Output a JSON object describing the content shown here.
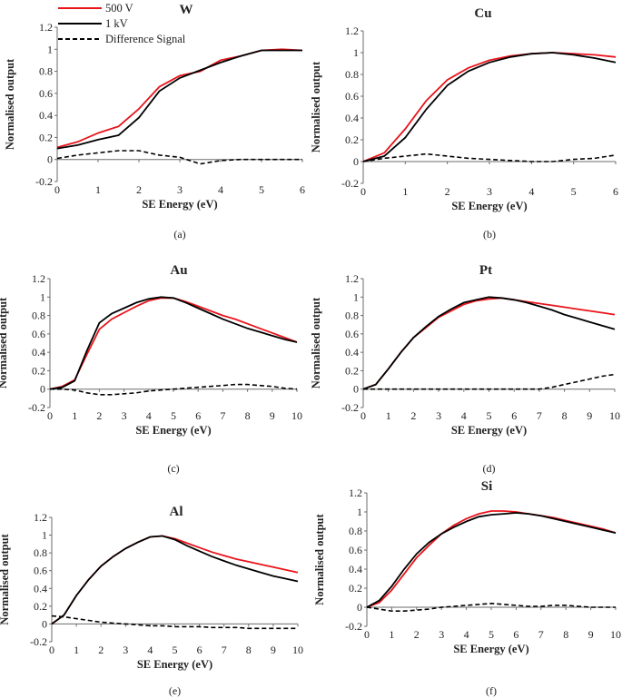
{
  "legend": {
    "entries": [
      {
        "label": "500 V",
        "color": "#e8141b",
        "style": "solid"
      },
      {
        "label": "1 kV",
        "color": "#000000",
        "style": "solid"
      },
      {
        "label": "Difference Signal",
        "color": "#000000",
        "style": "dashed"
      }
    ]
  },
  "chart_data": [
    {
      "type": "line",
      "title": "W",
      "caption": "(a)",
      "xlabel": "SE Energy (eV)",
      "ylabel": "Normalised output",
      "xlim": [
        0,
        6
      ],
      "ylim": [
        -0.2,
        1.2
      ],
      "xticks": [
        0,
        1,
        2,
        3,
        4,
        5,
        6
      ],
      "yticks": [
        -0.2,
        0,
        0.2,
        0.4,
        0.6,
        0.8,
        1,
        1.2
      ],
      "yticklabels": [
        "-0.2",
        "0",
        "0.2",
        "0.4",
        "0.6",
        "0.8",
        "1",
        "1.2"
      ],
      "series": [
        {
          "name": "500 V",
          "x": [
            0,
            0.5,
            1,
            1.5,
            2,
            2.5,
            3,
            3.5,
            4,
            4.5,
            5,
            5.5,
            6
          ],
          "y": [
            0.11,
            0.16,
            0.24,
            0.3,
            0.46,
            0.66,
            0.76,
            0.8,
            0.9,
            0.94,
            0.99,
            1.0,
            0.99
          ]
        },
        {
          "name": "1 kV",
          "x": [
            0,
            0.5,
            1,
            1.5,
            2,
            2.5,
            3,
            3.5,
            4,
            4.5,
            5,
            5.5,
            6
          ],
          "y": [
            0.1,
            0.13,
            0.18,
            0.22,
            0.38,
            0.62,
            0.74,
            0.81,
            0.88,
            0.94,
            0.99,
            0.99,
            0.99
          ]
        },
        {
          "name": "Difference Signal",
          "x": [
            0,
            0.5,
            1,
            1.5,
            2,
            2.5,
            3,
            3.5,
            4,
            4.5,
            5,
            5.5,
            6
          ],
          "y": [
            0.01,
            0.04,
            0.06,
            0.08,
            0.08,
            0.04,
            0.02,
            -0.04,
            -0.01,
            0,
            0,
            0,
            0
          ]
        }
      ]
    },
    {
      "type": "line",
      "title": "Cu",
      "caption": "(b)",
      "xlabel": "SE Energy (eV)",
      "ylabel": "Normalised output",
      "xlim": [
        0,
        6
      ],
      "ylim": [
        -0.2,
        1.2
      ],
      "xticks": [
        0,
        1,
        2,
        3,
        4,
        5,
        6
      ],
      "yticks": [
        -0.2,
        0,
        0.2,
        0.4,
        0.6,
        0.8,
        1,
        1.2
      ],
      "yticklabels": [
        "-0.2",
        "0",
        "0.2",
        "0.4",
        "0.6",
        "0.8",
        "1",
        "1.2"
      ],
      "series": [
        {
          "name": "500 V",
          "x": [
            0,
            0.5,
            1,
            1.5,
            2,
            2.5,
            3,
            3.5,
            4,
            4.5,
            5,
            5.5,
            6
          ],
          "y": [
            0,
            0.08,
            0.3,
            0.56,
            0.75,
            0.86,
            0.93,
            0.97,
            0.99,
            1.0,
            0.99,
            0.98,
            0.96
          ]
        },
        {
          "name": "1 kV",
          "x": [
            0,
            0.5,
            1,
            1.5,
            2,
            2.5,
            3,
            3.5,
            4,
            4.5,
            5,
            5.5,
            6
          ],
          "y": [
            0,
            0.05,
            0.22,
            0.48,
            0.7,
            0.83,
            0.91,
            0.96,
            0.99,
            1.0,
            0.98,
            0.95,
            0.91
          ]
        },
        {
          "name": "Difference Signal",
          "x": [
            0,
            0.5,
            1,
            1.5,
            2,
            2.5,
            3,
            3.5,
            4,
            4.5,
            5,
            5.5,
            6
          ],
          "y": [
            0,
            0.03,
            0.05,
            0.07,
            0.05,
            0.03,
            0.02,
            0.01,
            0,
            0,
            0.02,
            0.03,
            0.06
          ]
        }
      ]
    },
    {
      "type": "line",
      "title": "Au",
      "caption": "(c)",
      "xlabel": "SE Energy (eV)",
      "ylabel": "Normalised output",
      "xlim": [
        0,
        10
      ],
      "ylim": [
        -0.2,
        1.2
      ],
      "xticks": [
        0,
        1,
        2,
        3,
        4,
        5,
        6,
        7,
        8,
        9,
        10
      ],
      "yticks": [
        -0.2,
        0,
        0.2,
        0.4,
        0.6,
        0.8,
        1,
        1.2
      ],
      "yticklabels": [
        "-0.2",
        "0",
        "0.2",
        "0.4",
        "0.6",
        "0.8",
        "1",
        "1.2"
      ],
      "series": [
        {
          "name": "500 V",
          "x": [
            0,
            0.5,
            1,
            1.5,
            2,
            2.5,
            3,
            3.5,
            4,
            4.5,
            5,
            5.5,
            6,
            6.5,
            7,
            7.5,
            8,
            8.5,
            9,
            9.5,
            10
          ],
          "y": [
            0,
            0.03,
            0.1,
            0.38,
            0.65,
            0.76,
            0.83,
            0.9,
            0.96,
            0.99,
            0.99,
            0.95,
            0.9,
            0.85,
            0.8,
            0.76,
            0.71,
            0.66,
            0.61,
            0.56,
            0.51
          ]
        },
        {
          "name": "1 kV",
          "x": [
            0,
            0.5,
            1,
            1.5,
            2,
            2.5,
            3,
            3.5,
            4,
            4.5,
            5,
            5.5,
            6,
            6.5,
            7,
            7.5,
            8,
            8.5,
            9,
            9.5,
            10
          ],
          "y": [
            0,
            0.02,
            0.09,
            0.42,
            0.72,
            0.82,
            0.88,
            0.94,
            0.98,
            1.0,
            0.99,
            0.94,
            0.88,
            0.82,
            0.76,
            0.71,
            0.66,
            0.62,
            0.58,
            0.54,
            0.51
          ]
        },
        {
          "name": "Difference Signal",
          "x": [
            0,
            0.5,
            1,
            1.5,
            2,
            2.5,
            3,
            3.5,
            4,
            4.5,
            5,
            5.5,
            6,
            6.5,
            7,
            7.5,
            8,
            8.5,
            9,
            9.5,
            10
          ],
          "y": [
            0,
            0,
            -0.01,
            -0.04,
            -0.06,
            -0.06,
            -0.05,
            -0.04,
            -0.02,
            -0.01,
            0,
            0.01,
            0.02,
            0.03,
            0.04,
            0.05,
            0.05,
            0.04,
            0.03,
            0.01,
            0
          ]
        }
      ]
    },
    {
      "type": "line",
      "title": "Pt",
      "caption": "(d)",
      "xlabel": "SE Energy (eV)",
      "ylabel": "Normalised output",
      "xlim": [
        0,
        10
      ],
      "ylim": [
        -0.2,
        1.2
      ],
      "xticks": [
        0,
        1,
        2,
        3,
        4,
        5,
        6,
        7,
        8,
        9,
        10
      ],
      "yticks": [
        -0.2,
        0,
        0.2,
        0.4,
        0.6,
        0.8,
        1,
        1.2
      ],
      "yticklabels": [
        "-0.2",
        "0",
        "0.2",
        "0.4",
        "0.6",
        "0.8",
        "1",
        "1.2"
      ],
      "series": [
        {
          "name": "500 V",
          "x": [
            0,
            0.5,
            1,
            1.5,
            2,
            2.5,
            3,
            3.5,
            4,
            4.5,
            5,
            5.5,
            6,
            6.5,
            7,
            7.5,
            8,
            8.5,
            9,
            9.5,
            10
          ],
          "y": [
            0,
            0.05,
            0.22,
            0.4,
            0.56,
            0.67,
            0.78,
            0.85,
            0.92,
            0.96,
            0.98,
            0.99,
            0.97,
            0.95,
            0.93,
            0.91,
            0.89,
            0.87,
            0.85,
            0.83,
            0.81
          ]
        },
        {
          "name": "1 kV",
          "x": [
            0,
            0.5,
            1,
            1.5,
            2,
            2.5,
            3,
            3.5,
            4,
            4.5,
            5,
            5.5,
            6,
            6.5,
            7,
            7.5,
            8,
            8.5,
            9,
            9.5,
            10
          ],
          "y": [
            0,
            0.05,
            0.22,
            0.4,
            0.56,
            0.68,
            0.79,
            0.87,
            0.94,
            0.97,
            1.0,
            0.99,
            0.97,
            0.94,
            0.9,
            0.86,
            0.81,
            0.77,
            0.73,
            0.69,
            0.65
          ]
        },
        {
          "name": "Difference Signal",
          "x": [
            0,
            0.5,
            1,
            1.5,
            2,
            2.5,
            3,
            3.5,
            4,
            4.5,
            5,
            5.5,
            6,
            6.5,
            7,
            7.5,
            8,
            8.5,
            9,
            9.5,
            10
          ],
          "y": [
            0,
            0,
            0,
            0,
            0,
            0,
            0,
            0,
            0,
            0,
            0,
            0,
            0,
            0,
            0,
            0.02,
            0.05,
            0.08,
            0.11,
            0.14,
            0.16
          ]
        }
      ]
    },
    {
      "type": "line",
      "title": "Al",
      "caption": "(e)",
      "xlabel": "SE Energy (eV)",
      "ylabel": "Normalised output",
      "xlim": [
        0,
        10
      ],
      "ylim": [
        -0.2,
        1.2
      ],
      "xticks": [
        0,
        1,
        2,
        3,
        4,
        5,
        6,
        7,
        8,
        9,
        10
      ],
      "yticks": [
        -0.2,
        0,
        0.2,
        0.4,
        0.6,
        0.8,
        1,
        1.2
      ],
      "yticklabels": [
        "-0.2",
        "0",
        "0.2",
        "0.4",
        "0.6",
        "0.8",
        "1",
        "1.2"
      ],
      "series": [
        {
          "name": "500 V",
          "x": [
            0,
            0.5,
            1,
            1.5,
            2,
            2.5,
            3,
            3.5,
            4,
            4.5,
            5,
            5.5,
            6,
            6.5,
            7,
            7.5,
            8,
            8.5,
            9,
            9.5,
            10
          ],
          "y": [
            0,
            0.1,
            0.32,
            0.5,
            0.65,
            0.76,
            0.85,
            0.92,
            0.98,
            0.99,
            0.96,
            0.91,
            0.86,
            0.81,
            0.77,
            0.73,
            0.7,
            0.67,
            0.64,
            0.61,
            0.58
          ]
        },
        {
          "name": "1 kV",
          "x": [
            0,
            0.5,
            1,
            1.5,
            2,
            2.5,
            3,
            3.5,
            4,
            4.5,
            5,
            5.5,
            6,
            6.5,
            7,
            7.5,
            8,
            8.5,
            9,
            9.5,
            10
          ],
          "y": [
            0,
            0.1,
            0.32,
            0.5,
            0.65,
            0.76,
            0.85,
            0.92,
            0.98,
            0.99,
            0.95,
            0.88,
            0.82,
            0.76,
            0.71,
            0.66,
            0.62,
            0.58,
            0.54,
            0.51,
            0.48
          ]
        },
        {
          "name": "Difference Signal",
          "x": [
            0,
            0.5,
            1,
            1.5,
            2,
            2.5,
            3,
            3.5,
            4,
            4.5,
            5,
            5.5,
            6,
            6.5,
            7,
            7.5,
            8,
            8.5,
            9,
            9.5,
            10
          ],
          "y": [
            0.09,
            0.08,
            0.06,
            0.04,
            0.02,
            0.01,
            0,
            -0.01,
            -0.02,
            -0.02,
            -0.03,
            -0.03,
            -0.03,
            -0.04,
            -0.04,
            -0.04,
            -0.05,
            -0.05,
            -0.05,
            -0.05,
            -0.05
          ]
        }
      ]
    },
    {
      "type": "line",
      "title": "Si",
      "caption": "(f)",
      "xlabel": "SE Energy (eV)",
      "ylabel": "Normalised output",
      "xlim": [
        0,
        10
      ],
      "ylim": [
        -0.2,
        1.2
      ],
      "xticks": [
        0,
        1,
        2,
        3,
        4,
        5,
        6,
        7,
        8,
        9,
        10
      ],
      "yticks": [
        -0.2,
        0,
        0.2,
        0.4,
        0.6,
        0.8,
        1,
        1.2
      ],
      "yticklabels": [
        "-0.2",
        "0",
        "0.2",
        "0.4",
        "0.6",
        "0.8",
        "1",
        "1.2"
      ],
      "series": [
        {
          "name": "500 V",
          "x": [
            0,
            0.5,
            1,
            1.5,
            2,
            2.5,
            3,
            3.5,
            4,
            4.5,
            5,
            5.5,
            6,
            6.5,
            7,
            7.5,
            8,
            8.5,
            9,
            9.5,
            10
          ],
          "y": [
            0,
            0.05,
            0.18,
            0.35,
            0.52,
            0.65,
            0.77,
            0.86,
            0.93,
            0.98,
            1.01,
            1.01,
            1.0,
            0.98,
            0.96,
            0.94,
            0.91,
            0.88,
            0.85,
            0.82,
            0.78
          ]
        },
        {
          "name": "1 kV",
          "x": [
            0,
            0.5,
            1,
            1.5,
            2,
            2.5,
            3,
            3.5,
            4,
            4.5,
            5,
            5.5,
            6,
            6.5,
            7,
            7.5,
            8,
            8.5,
            9,
            9.5,
            10
          ],
          "y": [
            0,
            0.07,
            0.22,
            0.4,
            0.56,
            0.68,
            0.77,
            0.84,
            0.9,
            0.95,
            0.97,
            0.98,
            0.99,
            0.98,
            0.96,
            0.93,
            0.9,
            0.87,
            0.84,
            0.81,
            0.78
          ]
        },
        {
          "name": "Difference Signal",
          "x": [
            0,
            0.5,
            1,
            1.5,
            2,
            2.5,
            3,
            3.5,
            4,
            4.5,
            5,
            5.5,
            6,
            6.5,
            7,
            7.5,
            8,
            8.5,
            9,
            9.5,
            10
          ],
          "y": [
            0,
            -0.02,
            -0.04,
            -0.04,
            -0.03,
            -0.02,
            0,
            0.01,
            0.02,
            0.03,
            0.04,
            0.03,
            0.02,
            0.01,
            0.01,
            0.02,
            0.02,
            0.01,
            0,
            0,
            0
          ]
        }
      ]
    }
  ]
}
